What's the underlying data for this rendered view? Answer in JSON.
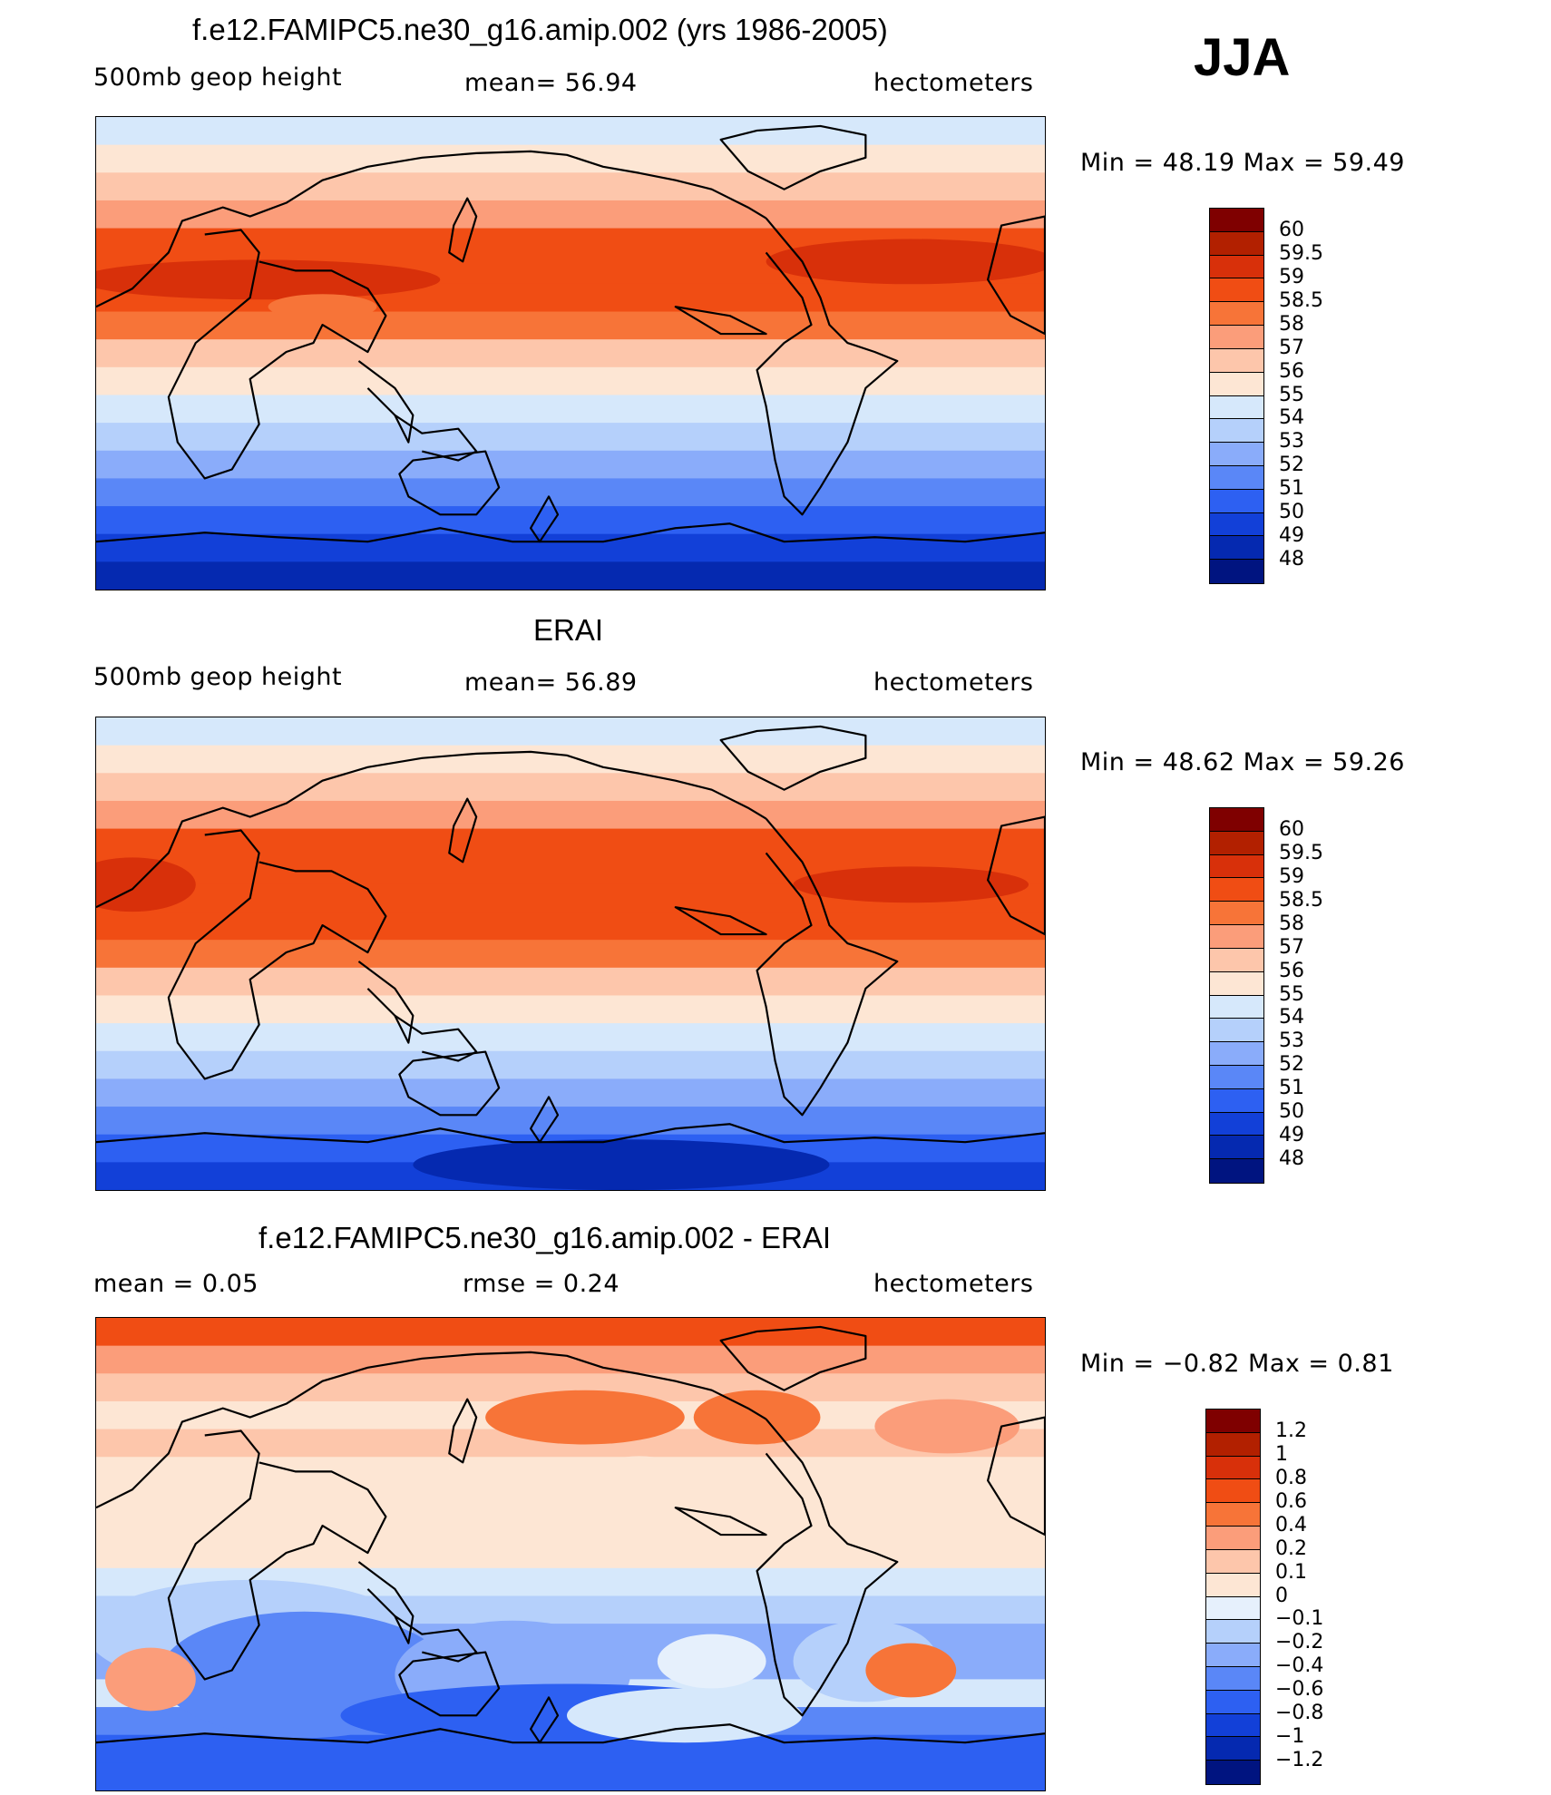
{
  "season": "JJA",
  "panels": [
    {
      "title": "f.e12.FAMIPC5.ne30_g16.amip.002 (yrs 1986-2005)",
      "left_label": "500mb  geop  height",
      "center_label": "mean=   56.94",
      "right_label": "hectometers",
      "minmax": "Min  =     48.19  Max  =     59.49",
      "colorbar": {
        "labels": [
          "60",
          "59.5",
          "59",
          "58.5",
          "58",
          "57",
          "56",
          "55",
          "54",
          "53",
          "52",
          "51",
          "50",
          "49",
          "48"
        ],
        "colors": [
          "#7f0000",
          "#b22000",
          "#d8300a",
          "#f04d14",
          "#f77438",
          "#fb9d7a",
          "#fdc6ab",
          "#fde6d4",
          "#d6e8fb",
          "#b5d0fb",
          "#8aacfa",
          "#5a87f7",
          "#2d60f2",
          "#1240d8",
          "#0529b0",
          "#001480"
        ]
      },
      "bands": [
        "#d6e8fb",
        "#fde6d4",
        "#fdc6ab",
        "#fb9d7a",
        "#f04d14",
        "#f04d14",
        "#f04d14",
        "#f77438",
        "#fdc6ab",
        "#fde6d4",
        "#d6e8fb",
        "#b5d0fb",
        "#8aacfa",
        "#5a87f7",
        "#2d60f2",
        "#1240d8",
        "#0529b0"
      ]
    },
    {
      "title": "ERAI",
      "left_label": "500mb  geop  height",
      "center_label": "mean=   56.89",
      "right_label": "hectometers",
      "minmax": "Min  =     48.62  Max  =     59.26",
      "colorbar": {
        "labels": [
          "60",
          "59.5",
          "59",
          "58.5",
          "58",
          "57",
          "56",
          "55",
          "54",
          "53",
          "52",
          "51",
          "50",
          "49",
          "48"
        ],
        "colors": [
          "#7f0000",
          "#b22000",
          "#d8300a",
          "#f04d14",
          "#f77438",
          "#fb9d7a",
          "#fdc6ab",
          "#fde6d4",
          "#d6e8fb",
          "#b5d0fb",
          "#8aacfa",
          "#5a87f7",
          "#2d60f2",
          "#1240d8",
          "#0529b0",
          "#001480"
        ]
      },
      "bands": [
        "#d6e8fb",
        "#fde6d4",
        "#fdc6ab",
        "#fb9d7a",
        "#f04d14",
        "#f04d14",
        "#f04d14",
        "#f04d14",
        "#f77438",
        "#fdc6ab",
        "#fde6d4",
        "#d6e8fb",
        "#b5d0fb",
        "#8aacfa",
        "#5a87f7",
        "#2d60f2",
        "#1240d8"
      ]
    },
    {
      "title": "f.e12.FAMIPC5.ne30_g16.amip.002 - ERAI",
      "left_label": "mean  =      0.05",
      "center_label": "rmse  =      0.24",
      "right_label": "hectometers",
      "minmax": "Min  =     −0.82  Max  =       0.81",
      "colorbar": {
        "labels": [
          "1.2",
          "1",
          "0.8",
          "0.6",
          "0.4",
          "0.2",
          "0.1",
          "0",
          "−0.1",
          "−0.2",
          "−0.4",
          "−0.6",
          "−0.8",
          "−1",
          "−1.2"
        ],
        "colors": [
          "#7f0000",
          "#b22000",
          "#d8300a",
          "#f04d14",
          "#f77438",
          "#fb9d7a",
          "#fdc6ab",
          "#fde6d4",
          "#e6f0fc",
          "#b5d0fb",
          "#8aacfa",
          "#5a87f7",
          "#2d60f2",
          "#1240d8",
          "#0529b0",
          "#001480"
        ]
      },
      "bands": [
        "#f04d14",
        "#fb9d7a",
        "#fdc6ab",
        "#fde6d4",
        "#fdc6ab",
        "#fde6d4",
        "#fde6d4",
        "#fde6d4",
        "#fde6d4",
        "#d6e8fb",
        "#b5d0fb",
        "#8aacfa",
        "#8aacfa",
        "#d6e8fb",
        "#5a87f7",
        "#2d60f2",
        "#2d60f2"
      ]
    }
  ]
}
